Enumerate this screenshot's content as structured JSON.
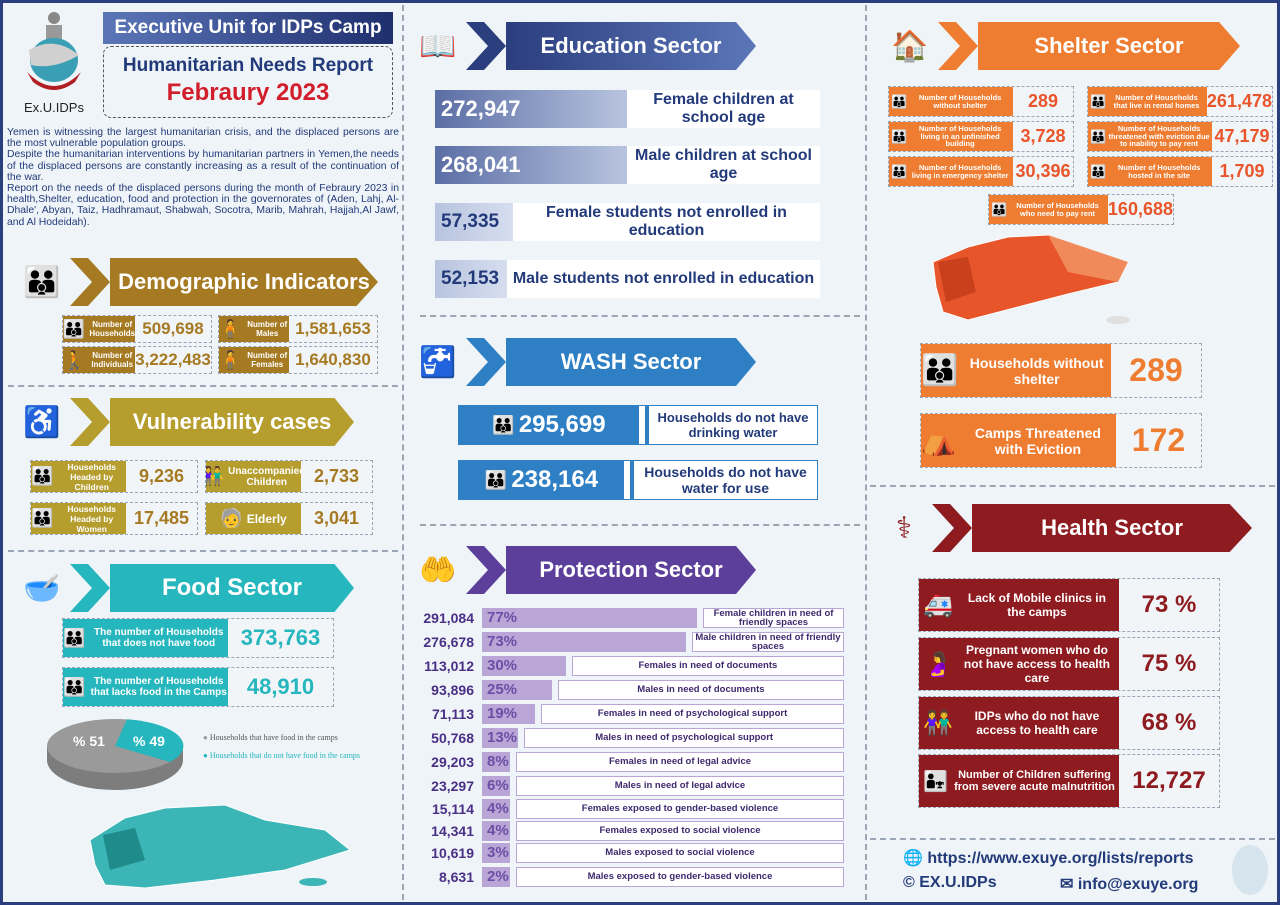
{
  "header": {
    "org_title": "Executive Unit for IDPs Camp",
    "report_title": "Humanitarian Needs Report",
    "period": "Febraury 2023",
    "logo_text": "Ex.U.IDPs"
  },
  "intro": [
    "Yemen is witnessing the largest humanitarian crisis, and the displaced persons are the most vulnerable population groups.",
    "Despite the humanitarian interventions by humanitarian partners in Yemen,the needs of the displaced persons are constantly increasing as a result of the continuation of the war.",
    "Report on the needs of the displaced persons during the month of Febraury 2023 in  health,Shelter, education, food and protection in the governorates of (Aden, Lahj, Al-Dhale',  Abyan, Taiz, Hadhramaut, Shabwah, Socotra, Marib, Mahrah, Hajjah,Al Jawf,  and Al Hodeidah)."
  ],
  "demographic": {
    "title": "Demographic Indicators",
    "items": [
      {
        "label": "Number of Households",
        "value": "509,698"
      },
      {
        "label": "Number of Males",
        "value": "1,581,653"
      },
      {
        "label": "Number of Individuals",
        "value": "3,222,483"
      },
      {
        "label": "Number of Females",
        "value": "1,640,830"
      }
    ]
  },
  "vulnerability": {
    "title": "Vulnerability cases",
    "items": [
      {
        "label": "Households Headed by Children",
        "value": "9,236"
      },
      {
        "label": "Unaccompanied Children",
        "value": "2,733"
      },
      {
        "label": "Households Headed by Women",
        "value": "17,485"
      },
      {
        "label": "Elderly",
        "value": "3,041"
      }
    ]
  },
  "food": {
    "title": "Food Sector",
    "items": [
      {
        "label": "The number of Households that does not have food",
        "value": "373,763"
      },
      {
        "label": "The number of Households that lacks  food in the Camps",
        "value": "48,910"
      }
    ],
    "pie": {
      "slices": [
        {
          "label": "Households that have food in the camps",
          "value": 51,
          "text": "% 51",
          "color": "#9a9a9a"
        },
        {
          "label": "Households that do not have food in the camps",
          "value": 49,
          "text": "% 49",
          "color": "#26b6bd"
        }
      ]
    }
  },
  "education": {
    "title": "Education Sector",
    "items": [
      {
        "value": "272,947",
        "label": "Female children at school age",
        "fill": 0.5
      },
      {
        "value": "268,041",
        "label": "Male children at school age",
        "fill": 0.5
      },
      {
        "value": "57,335",
        "label": "Female students not enrolled in education",
        "fill": 0.2
      },
      {
        "value": "52,153",
        "label": "Male students not enrolled in education",
        "fill": 0.18
      }
    ]
  },
  "wash": {
    "title": "WASH Sector",
    "items": [
      {
        "value": "295,699",
        "label": "Households do not have drinking water"
      },
      {
        "value": "238,164",
        "label": "Households do not have water for use"
      }
    ]
  },
  "protection": {
    "title": "Protection Sector",
    "items": [
      {
        "value": "291,084",
        "pct": 77,
        "pct_text": "77%",
        "label": "Female children in need of friendly spaces"
      },
      {
        "value": "276,678",
        "pct": 73,
        "pct_text": "73%",
        "label": "Male children in need of friendly spaces"
      },
      {
        "value": "113,012",
        "pct": 30,
        "pct_text": "30%",
        "label": "Females in need of documents"
      },
      {
        "value": "93,896",
        "pct": 25,
        "pct_text": "25%",
        "label": "Males in need of documents"
      },
      {
        "value": "71,113",
        "pct": 19,
        "pct_text": "19%",
        "label": "Females in need of psychological support"
      },
      {
        "value": "50,768",
        "pct": 13,
        "pct_text": "13%",
        "label": "Males in need of psychological support"
      },
      {
        "value": "29,203",
        "pct": 8,
        "pct_text": "8%",
        "label": "Females in need of legal advice"
      },
      {
        "value": "23,297",
        "pct": 6,
        "pct_text": "6%",
        "label": "Males in need of legal advice"
      },
      {
        "value": "15,114",
        "pct": 4,
        "pct_text": "4%",
        "label": "Females exposed to gender-based violence"
      },
      {
        "value": "14,341",
        "pct": 4,
        "pct_text": "4%",
        "label": "Females exposed to social violence"
      },
      {
        "value": "10,619",
        "pct": 3,
        "pct_text": "3%",
        "label": "Males exposed to social violence"
      },
      {
        "value": "8,631",
        "pct": 2,
        "pct_text": "2%",
        "label": "Males exposed to gender-based violence"
      }
    ]
  },
  "shelter": {
    "title": "Shelter Sector",
    "items": [
      {
        "label": "Number of Households without shelter",
        "value": "289"
      },
      {
        "label": "Number of Households that live in rental homes",
        "value": "261,478"
      },
      {
        "label": "Number of Households living in an unfinished building",
        "value": "3,728"
      },
      {
        "label": "Number of Households threatened with eviction due to inability to pay rent",
        "value": "47,179"
      },
      {
        "label": "Number of Households living in emergency shelter",
        "value": "30,396"
      },
      {
        "label": "Number of Households hosted in  the site",
        "value": "1,709"
      },
      {
        "label": "Number of Households who need to pay rent",
        "value": "160,688"
      }
    ],
    "highlights": [
      {
        "label": "Households without shelter",
        "value": "289"
      },
      {
        "label": "Camps Threatened with Eviction",
        "value": "172"
      }
    ]
  },
  "health": {
    "title": "Health Sector",
    "items": [
      {
        "label": "Lack of Mobile clinics in the camps",
        "value": "73 %"
      },
      {
        "label": "Pregnant women who do not have access to health care",
        "value": "75 %"
      },
      {
        "label": "IDPs who do not have access to health care",
        "value": "68 %"
      },
      {
        "label": "Number of Children suffering from severe acute malnutrition",
        "value": "12,727"
      }
    ]
  },
  "footer": {
    "website": "https://www.exuye.org/lists/reports",
    "copyright": "EX.U.IDPs",
    "email": "info@exuye.org"
  },
  "colors": {
    "education": "#2b3e7e",
    "demographic": "#a57a22",
    "vulnerability": "#b59d2e",
    "food": "#26b6bd",
    "wash": "#2e7fc4",
    "protection": "#5b3f9b",
    "shelter": "#ee7d31",
    "health": "#8e1b1f"
  }
}
